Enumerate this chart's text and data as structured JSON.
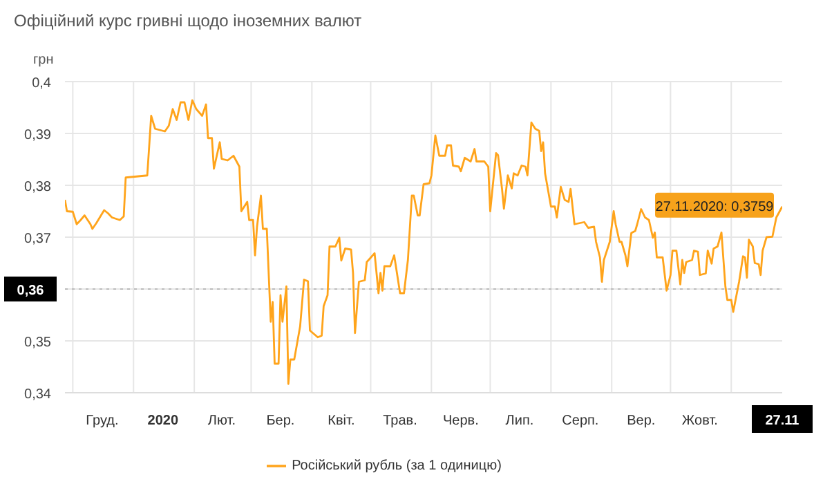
{
  "chart_data": {
    "type": "line",
    "title": "Офіційний курс гривні щодо іноземних валют",
    "ylabel": "грн",
    "x": [
      "2019-11-27",
      "2019-11-28",
      "2019-12-01",
      "2019-12-03",
      "2019-12-05",
      "2019-12-07",
      "2019-12-10",
      "2019-12-11",
      "2019-12-13",
      "2019-12-17",
      "2019-12-19",
      "2019-12-21",
      "2019-12-25",
      "2019-12-27",
      "2019-12-28",
      "2020-01-08",
      "2020-01-10",
      "2020-01-12",
      "2020-01-17",
      "2020-01-19",
      "2020-01-21",
      "2020-01-23",
      "2020-01-25",
      "2020-01-27",
      "2020-01-29",
      "2020-01-31",
      "2020-02-02",
      "2020-02-05",
      "2020-02-07",
      "2020-02-08",
      "2020-02-10",
      "2020-02-11",
      "2020-02-14",
      "2020-02-15",
      "2020-02-18",
      "2020-02-21",
      "2020-02-24",
      "2020-02-25",
      "2020-02-28",
      "2020-02-29",
      "2020-03-02",
      "2020-03-03",
      "2020-03-04",
      "2020-03-06",
      "2020-03-07",
      "2020-03-09",
      "2020-03-11",
      "2020-03-12",
      "2020-03-13",
      "2020-03-15",
      "2020-03-16",
      "2020-03-17",
      "2020-03-19",
      "2020-03-20",
      "2020-03-21",
      "2020-03-23",
      "2020-03-26",
      "2020-03-28",
      "2020-03-30",
      "2020-03-31",
      "2020-04-04",
      "2020-04-06",
      "2020-04-07",
      "2020-04-09",
      "2020-04-10",
      "2020-04-13",
      "2020-04-15",
      "2020-04-16",
      "2020-04-18",
      "2020-04-21",
      "2020-04-22",
      "2020-04-23",
      "2020-04-25",
      "2020-04-28",
      "2020-04-29",
      "2020-05-03",
      "2020-05-05",
      "2020-05-06",
      "2020-05-07",
      "2020-05-08",
      "2020-05-11",
      "2020-05-13",
      "2020-05-16",
      "2020-05-18",
      "2020-05-20",
      "2020-05-22",
      "2020-05-23",
      "2020-05-25",
      "2020-05-26",
      "2020-05-28",
      "2020-05-31",
      "2020-06-01",
      "2020-06-03",
      "2020-06-05",
      "2020-06-08",
      "2020-06-09",
      "2020-06-11",
      "2020-06-12",
      "2020-06-15",
      "2020-06-16",
      "2020-06-18",
      "2020-06-21",
      "2020-06-23",
      "2020-06-24",
      "2020-06-28",
      "2020-06-30",
      "2020-07-01",
      "2020-07-04",
      "2020-07-05",
      "2020-07-07",
      "2020-07-08",
      "2020-07-10",
      "2020-07-12",
      "2020-07-13",
      "2020-07-15",
      "2020-07-17",
      "2020-07-19",
      "2020-07-20",
      "2020-07-22",
      "2020-07-24",
      "2020-07-26",
      "2020-07-27",
      "2020-07-28",
      "2020-07-29",
      "2020-08-01",
      "2020-08-03",
      "2020-08-04",
      "2020-08-06",
      "2020-08-08",
      "2020-08-10",
      "2020-08-11",
      "2020-08-13",
      "2020-08-18",
      "2020-08-20",
      "2020-08-23",
      "2020-08-24",
      "2020-08-26",
      "2020-08-27",
      "2020-08-28",
      "2020-08-31",
      "2020-09-02",
      "2020-09-03",
      "2020-09-05",
      "2020-09-06",
      "2020-09-08",
      "2020-09-09",
      "2020-09-11",
      "2020-09-13",
      "2020-09-14",
      "2020-09-16",
      "2020-09-18",
      "2020-09-20",
      "2020-09-22",
      "2020-09-23",
      "2020-09-24",
      "2020-09-27",
      "2020-09-29",
      "2020-10-01",
      "2020-10-02",
      "2020-10-04",
      "2020-10-06",
      "2020-10-07",
      "2020-10-08",
      "2020-10-09",
      "2020-10-12",
      "2020-10-13",
      "2020-10-15",
      "2020-10-16",
      "2020-10-19",
      "2020-10-20",
      "2020-10-22",
      "2020-10-23",
      "2020-10-25",
      "2020-10-27",
      "2020-10-29",
      "2020-10-30",
      "2020-11-01",
      "2020-11-02",
      "2020-11-05",
      "2020-11-07",
      "2020-11-08",
      "2020-11-09",
      "2020-11-10",
      "2020-11-12",
      "2020-11-13",
      "2020-11-15",
      "2020-11-16",
      "2020-11-17",
      "2020-11-19",
      "2020-11-22",
      "2020-11-24",
      "2020-11-27"
    ],
    "series": [
      {
        "name": "Російський рубль (за 1 одиницю)",
        "color": "#ffa41b",
        "values": [
          0.3772,
          0.375,
          0.3749,
          0.3725,
          0.3733,
          0.3742,
          0.3725,
          0.3716,
          0.3727,
          0.3752,
          0.3746,
          0.3738,
          0.3733,
          0.374,
          0.3815,
          0.3819,
          0.3934,
          0.3909,
          0.3904,
          0.3915,
          0.3947,
          0.3926,
          0.396,
          0.396,
          0.3926,
          0.3964,
          0.3947,
          0.3934,
          0.3956,
          0.3891,
          0.3891,
          0.3832,
          0.3883,
          0.3851,
          0.3848,
          0.3857,
          0.3836,
          0.375,
          0.3768,
          0.3733,
          0.3733,
          0.3665,
          0.372,
          0.378,
          0.3716,
          0.3716,
          0.3537,
          0.3575,
          0.3456,
          0.3456,
          0.3588,
          0.3537,
          0.3605,
          0.3417,
          0.3464,
          0.3464,
          0.3528,
          0.3618,
          0.3615,
          0.352,
          0.3507,
          0.351,
          0.3567,
          0.3588,
          0.3682,
          0.3682,
          0.3699,
          0.3655,
          0.3678,
          0.3676,
          0.3631,
          0.3515,
          0.3614,
          0.3617,
          0.3652,
          0.3669,
          0.3592,
          0.3631,
          0.3597,
          0.3644,
          0.3644,
          0.3665,
          0.3592,
          0.3592,
          0.3656,
          0.378,
          0.378,
          0.3742,
          0.3742,
          0.3802,
          0.3804,
          0.3819,
          0.3896,
          0.3857,
          0.3857,
          0.3877,
          0.3877,
          0.3838,
          0.3836,
          0.3827,
          0.3853,
          0.3846,
          0.387,
          0.3846,
          0.3846,
          0.3836,
          0.375,
          0.3862,
          0.3858,
          0.3794,
          0.3755,
          0.3819,
          0.3794,
          0.3823,
          0.3819,
          0.3838,
          0.3836,
          0.3819,
          0.3921,
          0.3909,
          0.3905,
          0.3866,
          0.3883,
          0.3823,
          0.3759,
          0.3759,
          0.3738,
          0.3797,
          0.3772,
          0.3768,
          0.3793,
          0.3725,
          0.3729,
          0.3718,
          0.372,
          0.3691,
          0.3661,
          0.3614,
          0.3656,
          0.3691,
          0.375,
          0.3725,
          0.3691,
          0.3691,
          0.3665,
          0.3644,
          0.3708,
          0.3712,
          0.3725,
          0.3754,
          0.3738,
          0.3733,
          0.3699,
          0.3709,
          0.3661,
          0.3661,
          0.3597,
          0.3627,
          0.3674,
          0.3674,
          0.3609,
          0.3656,
          0.3631,
          0.3652,
          0.3656,
          0.3674,
          0.3672,
          0.3627,
          0.363,
          0.3674,
          0.3649,
          0.3678,
          0.3682,
          0.3709,
          0.3605,
          0.3579,
          0.3579,
          0.3556,
          0.3614,
          0.3663,
          0.3661,
          0.3622,
          0.3695,
          0.3682,
          0.365,
          0.3648,
          0.3627,
          0.3674,
          0.37,
          0.3701,
          0.3738,
          0.3759
        ]
      }
    ],
    "xlim": [
      "2019-11-27",
      "2020-11-27"
    ],
    "xticks": [
      {
        "value": "2019-12-01",
        "label": null
      },
      {
        "value": "2019-12-16",
        "label": "Груд."
      },
      {
        "value": "2020-01-01",
        "label": null
      },
      {
        "value": "2020-01-16",
        "label": "2020"
      },
      {
        "value": "2020-02-01",
        "label": null
      },
      {
        "value": "2020-02-15",
        "label": "Лют."
      },
      {
        "value": "2020-03-01",
        "label": null
      },
      {
        "value": "2020-03-16",
        "label": "Бер."
      },
      {
        "value": "2020-04-01",
        "label": null
      },
      {
        "value": "2020-04-16",
        "label": "Квіт."
      },
      {
        "value": "2020-05-01",
        "label": null
      },
      {
        "value": "2020-05-16",
        "label": "Трав."
      },
      {
        "value": "2020-06-01",
        "label": null
      },
      {
        "value": "2020-06-16",
        "label": "Черв."
      },
      {
        "value": "2020-07-01",
        "label": null
      },
      {
        "value": "2020-07-16",
        "label": "Лип."
      },
      {
        "value": "2020-08-01",
        "label": null
      },
      {
        "value": "2020-08-16",
        "label": "Серп."
      },
      {
        "value": "2020-09-01",
        "label": null
      },
      {
        "value": "2020-09-16",
        "label": "Вер."
      },
      {
        "value": "2020-10-01",
        "label": null
      },
      {
        "value": "2020-10-16",
        "label": "Жовт."
      },
      {
        "value": "2020-11-01",
        "label": null
      },
      {
        "value": "2020-11-27",
        "label": "27.11"
      }
    ],
    "ylim": [
      0.34,
      0.4
    ],
    "yticks": [
      {
        "value": 0.34,
        "label": "0,34"
      },
      {
        "value": 0.35,
        "label": "0,35"
      },
      {
        "value": 0.36,
        "label": null
      },
      {
        "value": 0.37,
        "label": "0,37"
      },
      {
        "value": 0.38,
        "label": "0,38"
      },
      {
        "value": 0.39,
        "label": "0,39"
      },
      {
        "value": 0.4,
        "label": "0,4"
      }
    ],
    "ref_lines": [
      {
        "axis": "y",
        "value": 0.36,
        "label": "0,36",
        "color": "#bbbbbb",
        "line_style": "dotted"
      }
    ],
    "annotations": [
      {
        "text": "27.11.2020: 0,3759",
        "x": "2020-11-27",
        "y": 0.3759
      }
    ],
    "grid": true,
    "legend": "bottom",
    "marker": "none",
    "line_style": "solid"
  }
}
